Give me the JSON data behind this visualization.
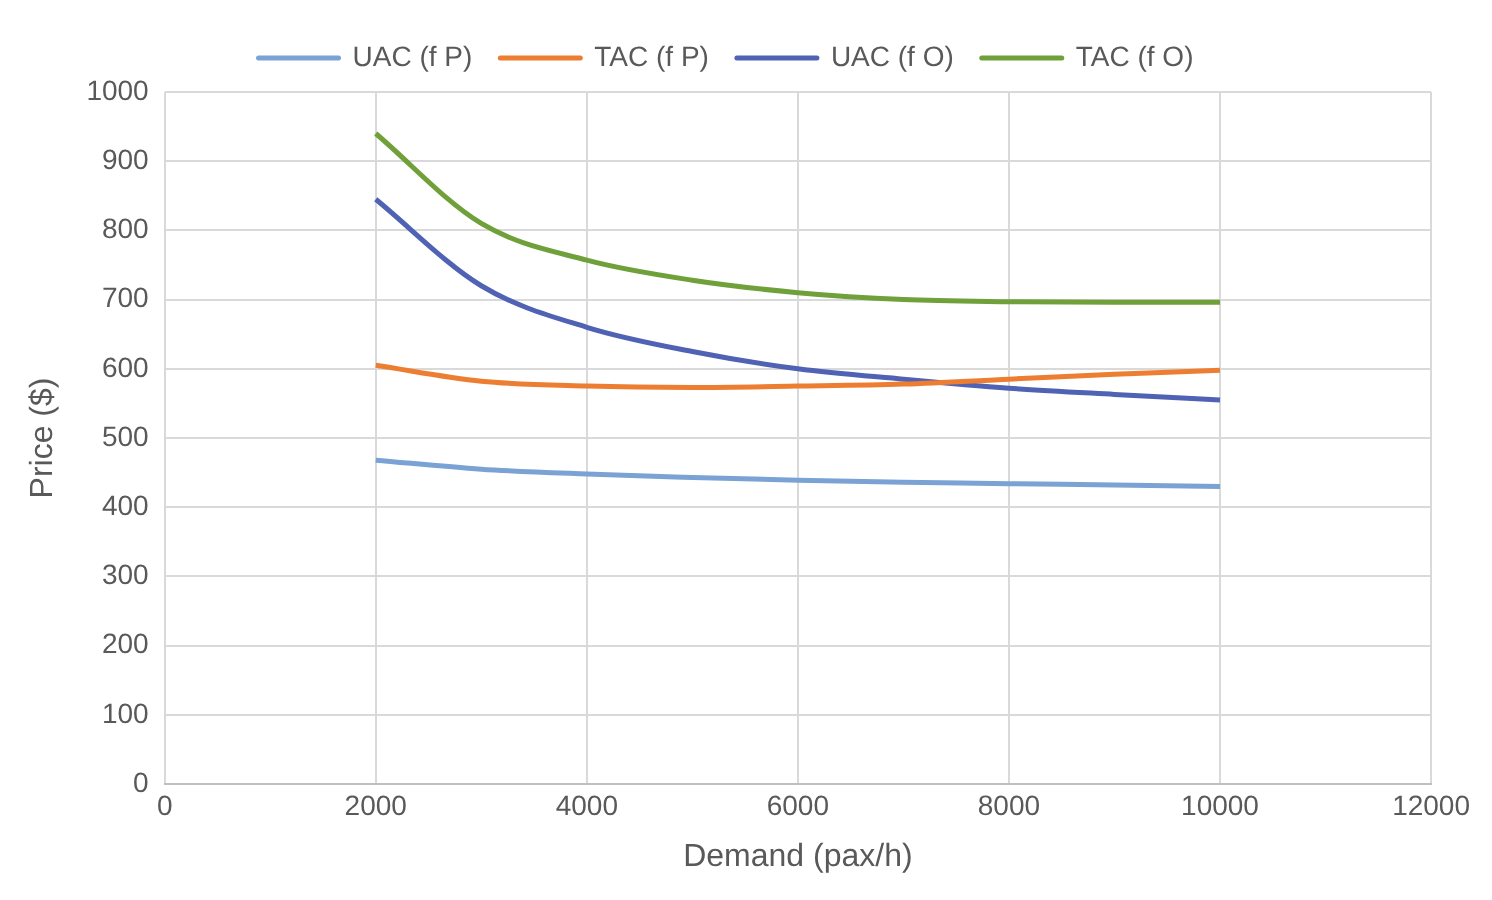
{
  "chart_data": {
    "type": "line",
    "xlabel": "Demand (pax/h)",
    "ylabel": "Price ($)",
    "x": [
      2000,
      3000,
      4000,
      5000,
      6000,
      7000,
      8000,
      9000,
      10000
    ],
    "series": [
      {
        "name": "UAC (f P)",
        "color": "#7ba2d4",
        "values": [
          468,
          455,
          448,
          443,
          439,
          436,
          434,
          432,
          430
        ]
      },
      {
        "name": "TAC (f P)",
        "color": "#ed7d31",
        "values": [
          605,
          582,
          575,
          573,
          575,
          578,
          585,
          592,
          598
        ]
      },
      {
        "name": "UAC (f O)",
        "color": "#4f62b3",
        "values": [
          845,
          720,
          660,
          625,
          600,
          585,
          572,
          563,
          555
        ]
      },
      {
        "name": "TAC (f O)",
        "color": "#70a03a",
        "values": [
          940,
          810,
          757,
          728,
          710,
          700,
          697,
          696,
          696
        ]
      }
    ],
    "xlim": [
      0,
      12000
    ],
    "xticks": [
      0,
      2000,
      4000,
      6000,
      8000,
      10000,
      12000
    ],
    "ylim": [
      0,
      1000
    ],
    "yticks": [
      0,
      100,
      200,
      300,
      400,
      500,
      600,
      700,
      800,
      900,
      1000
    ],
    "grid": true,
    "legend": "top",
    "marker": "none",
    "line_style": "solid"
  }
}
